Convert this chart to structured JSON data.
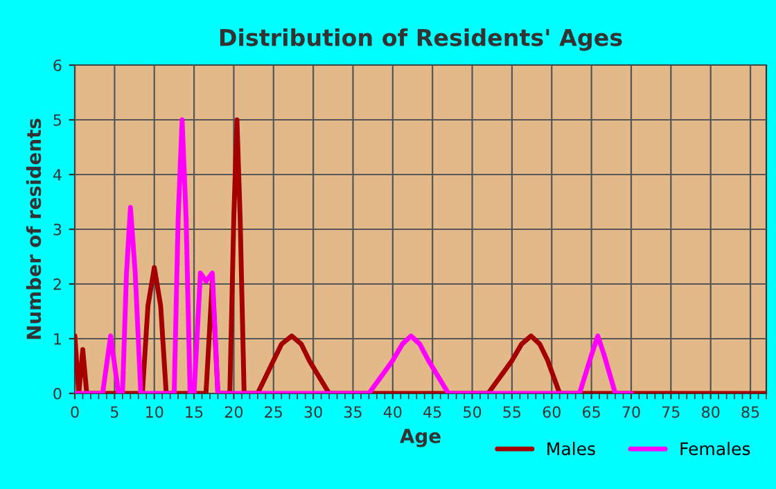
{
  "chart_data": {
    "type": "line",
    "title": "Distribution of Residents' Ages",
    "xlabel": "Age",
    "ylabel": "Number of residents",
    "xlim": [
      0,
      87
    ],
    "xticks": [
      0,
      5,
      10,
      15,
      20,
      25,
      30,
      35,
      40,
      45,
      50,
      55,
      60,
      65,
      70,
      75,
      80,
      85
    ],
    "ylim": [
      0,
      6
    ],
    "yticks": [
      0,
      1,
      2,
      3,
      4,
      5,
      6
    ],
    "grid": true,
    "legend": "bottom right",
    "marker": "none",
    "line_style": "solid",
    "series": [
      {
        "name": "Males",
        "color": "#a50000",
        "x": [
          0,
          0.5,
          1,
          1.5,
          2,
          8.5,
          9.2,
          10,
          10.8,
          11.5,
          16.5,
          17.3,
          18,
          19.5,
          20,
          20.4,
          20.8,
          21.3,
          23,
          25,
          26,
          27.3,
          28.5,
          29.5,
          32,
          52,
          55,
          56.2,
          57.4,
          58.5,
          59.5,
          61,
          87
        ],
        "values": [
          1.05,
          0,
          0.8,
          0,
          0,
          0,
          1.6,
          2.3,
          1.6,
          0,
          0,
          2.05,
          0,
          0,
          3.2,
          5,
          3.2,
          0,
          0,
          0.6,
          0.9,
          1.05,
          0.9,
          0.6,
          0,
          0,
          0.6,
          0.9,
          1.05,
          0.9,
          0.6,
          0,
          0
        ]
      },
      {
        "name": "Females",
        "color": "#ff00ff",
        "x": [
          0,
          3.5,
          4.5,
          5.5,
          6,
          6.5,
          7,
          7.6,
          8.3,
          12.5,
          13,
          13.5,
          14,
          14.5,
          15,
          15.8,
          16.5,
          17.3,
          18,
          37,
          40,
          41.2,
          42.3,
          43.4,
          44.5,
          47,
          63.5,
          65,
          65.8,
          66.6,
          68,
          70
        ],
        "values": [
          0,
          0,
          1.05,
          0,
          0,
          2.2,
          3.4,
          2.2,
          0,
          0,
          3.2,
          5,
          3.2,
          0,
          0,
          2.2,
          2.05,
          2.2,
          0,
          0,
          0.6,
          0.9,
          1.05,
          0.9,
          0.6,
          0,
          0,
          0.7,
          1.05,
          0.7,
          0,
          0
        ]
      }
    ]
  }
}
